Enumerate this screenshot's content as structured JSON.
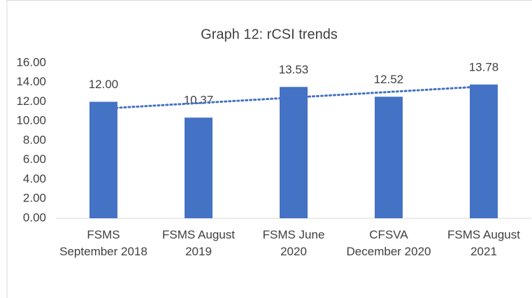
{
  "chart_data": {
    "type": "bar",
    "title": "Graph 12: rCSI trends",
    "categories": [
      "FSMS September 2018",
      "FSMS August 2019",
      "FSMS June 2020",
      "CFSVA December 2020",
      "FSMS August 2021"
    ],
    "values": [
      12.0,
      10.37,
      13.53,
      12.52,
      13.78
    ],
    "value_labels": [
      "12.00",
      "10.37",
      "13.53",
      "12.52",
      "13.78"
    ],
    "color": "#4472c4",
    "ylim": [
      0,
      16
    ],
    "yticks": [
      {
        "value": 0,
        "label": "0.00"
      },
      {
        "value": 2,
        "label": "2.00"
      },
      {
        "value": 4,
        "label": "4.00"
      },
      {
        "value": 6,
        "label": "6.00"
      },
      {
        "value": 8,
        "label": "8.00"
      },
      {
        "value": 10,
        "label": "10.00"
      },
      {
        "value": 12,
        "label": "12.00"
      },
      {
        "value": 14,
        "label": "14.00"
      },
      {
        "value": 16,
        "label": "16.00"
      }
    ],
    "trendline": true
  }
}
